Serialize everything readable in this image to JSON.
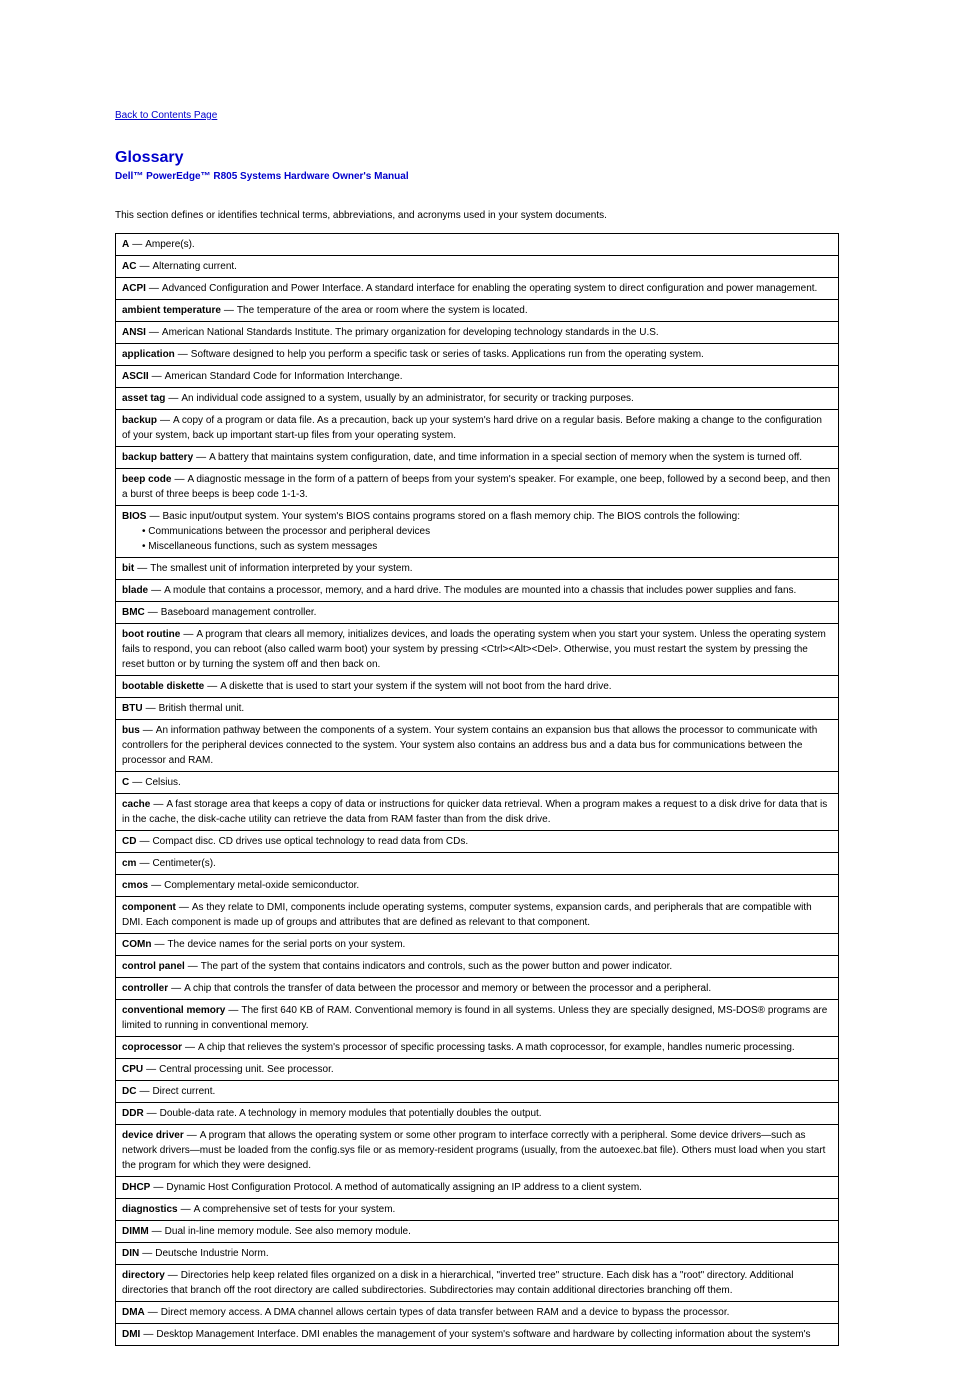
{
  "nav": {
    "back": "Back to Contents Page"
  },
  "header": {
    "section": "Glossary",
    "manual": "Dell™ PowerEdge™ R805 Systems Hardware Owner's Manual"
  },
  "intro": "This section defines or identifies technical terms, abbreviations, and acronyms used in your system documents.",
  "entries": [
    {
      "term": "A",
      "def": "Ampere(s)."
    },
    {
      "term": "AC",
      "def": "Alternating current."
    },
    {
      "term": "ACPI",
      "def": "Advanced Configuration and Power Interface. A standard interface for enabling the operating system to direct configuration and power management."
    },
    {
      "term": "ambient temperature",
      "def": "The temperature of the area or room where the system is located."
    },
    {
      "term": "ANSI",
      "def": "American National Standards Institute. The primary organization for developing technology standards in the U.S."
    },
    {
      "term": "application",
      "def": "Software designed to help you perform a specific task or series of tasks. Applications run from the operating system."
    },
    {
      "term": "ASCII",
      "def": "American Standard Code for Information Interchange."
    },
    {
      "term": "asset tag",
      "def": "An individual code assigned to a system, usually by an administrator, for security or tracking purposes."
    },
    {
      "term": "backup",
      "def": "A copy of a program or data file. As a precaution, back up your system's hard drive on a regular basis. Before making a change to the configuration of your system, back up important start-up files from your operating system."
    },
    {
      "term": "backup battery",
      "def": "A battery that maintains system configuration, date, and time information in a special section of memory when the system is turned off."
    },
    {
      "term": "beep code",
      "def": "A diagnostic message in the form of a pattern of beeps from your system's speaker. For example, one beep, followed by a second beep, and then a burst of three beeps is beep code 1-1-3."
    },
    {
      "term": "BIOS",
      "def": "Basic input/output system. Your system's BIOS contains programs stored on a flash memory chip. The BIOS controls the following:",
      "extra": [
        "Communications between the processor and peripheral devices",
        "Miscellaneous functions, such as system messages"
      ]
    },
    {
      "term": "bit",
      "def": "The smallest unit of information interpreted by your system."
    },
    {
      "term": "blade",
      "def": "A module that contains a processor, memory, and a hard drive. The modules are mounted into a chassis that includes power supplies and fans."
    },
    {
      "term": "BMC",
      "def": "Baseboard management controller."
    },
    {
      "term": "boot routine",
      "def": "A program that clears all memory, initializes devices, and loads the operating system when you start your system. Unless the operating system fails to respond, you can reboot (also called warm boot) your system by pressing <Ctrl><Alt><Del>. Otherwise, you must restart the system by pressing the reset button or by turning the system off and then back on."
    },
    {
      "term": "bootable diskette",
      "def": "A diskette that is used to start your system if the system will not boot from the hard drive."
    },
    {
      "term": "BTU",
      "def": "British thermal unit."
    },
    {
      "term": "bus",
      "def": "An information pathway between the components of a system. Your system contains an expansion bus that allows the processor to communicate with controllers for the peripheral devices connected to the system. Your system also contains an address bus and a data bus for communications between the processor and RAM."
    },
    {
      "term": "C",
      "def": "Celsius."
    },
    {
      "term": "cache",
      "def": "A fast storage area that keeps a copy of data or instructions for quicker data retrieval. When a program makes a request to a disk drive for data that is in the cache, the disk-cache utility can retrieve the data from RAM faster than from the disk drive."
    },
    {
      "term": "CD",
      "def": "Compact disc. CD drives use optical technology to read data from CDs."
    },
    {
      "term": "cm",
      "def": "Centimeter(s)."
    },
    {
      "term": "cmos",
      "def": "Complementary metal-oxide semiconductor."
    },
    {
      "term": "component",
      "def": "As they relate to DMI, components include operating systems, computer systems, expansion cards, and peripherals that are compatible with DMI. Each component is made up of groups and attributes that are defined as relevant to that component."
    },
    {
      "term": "COMn",
      "def": "The device names for the serial ports on your system."
    },
    {
      "term": "control panel",
      "def": "The part of the system that contains indicators and controls, such as the power button and power indicator."
    },
    {
      "term": "controller",
      "def": "A chip that controls the transfer of data between the processor and memory or between the processor and a peripheral."
    },
    {
      "term": "conventional memory",
      "def": "The first 640 KB of RAM. Conventional memory is found in all systems. Unless they are specially designed, MS-DOS® programs are limited to running in conventional memory."
    },
    {
      "term": "coprocessor",
      "def": "A chip that relieves the system's processor of specific processing tasks. A math coprocessor, for example, handles numeric processing."
    },
    {
      "term": "CPU",
      "def": "Central processing unit. See processor."
    },
    {
      "term": "DC",
      "def": "Direct current."
    },
    {
      "term": "DDR",
      "def": "Double-data rate. A technology in memory modules that potentially doubles the output."
    },
    {
      "term": "device driver",
      "def": "A program that allows the operating system or some other program to interface correctly with a peripheral. Some device drivers—such as network drivers—must be loaded from the config.sys file or as memory-resident programs (usually, from the autoexec.bat file). Others must load when you start the program for which they were designed."
    },
    {
      "term": "DHCP",
      "def": "Dynamic Host Configuration Protocol. A method of automatically assigning an IP address to a client system."
    },
    {
      "term": "diagnostics",
      "def": "A comprehensive set of tests for your system."
    },
    {
      "term": "DIMM",
      "def": "Dual in-line memory module. See also memory module."
    },
    {
      "term": "DIN",
      "def": "Deutsche Industrie Norm."
    },
    {
      "term": "directory",
      "def": "Directories help keep related files organized on a disk in a hierarchical, \"inverted tree\" structure. Each disk has a \"root\" directory. Additional directories that branch off the root directory are called subdirectories. Subdirectories may contain additional directories branching off them."
    },
    {
      "term": "DMA",
      "def": "Direct memory access. A DMA channel allows certain types of data transfer between RAM and a device to bypass the processor."
    },
    {
      "term": "DMI",
      "def": "Desktop Management Interface. DMI enables the management of your system's software and hardware by collecting information about the system's"
    }
  ]
}
